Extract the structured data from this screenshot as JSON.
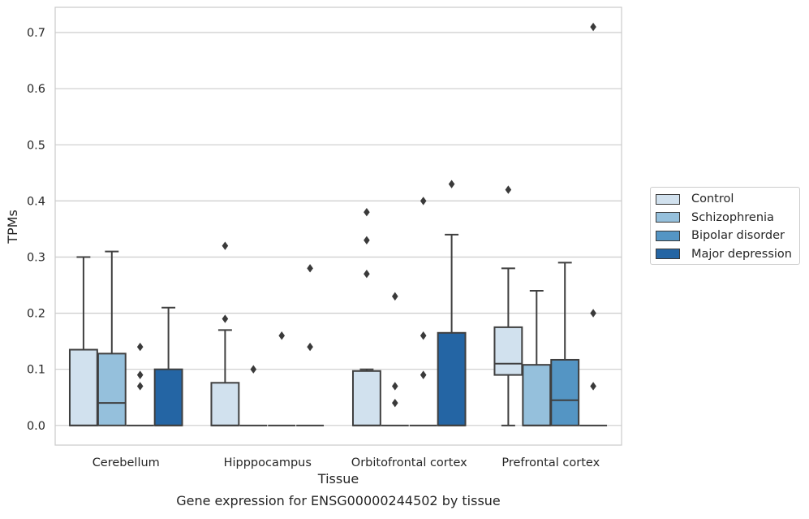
{
  "chart_data": {
    "type": "box",
    "title": "",
    "xlabel": "Tissue",
    "ylabel": "TPMs",
    "caption": "Gene expression for ENSG00000244502 by tissue",
    "ylim": [
      -0.035,
      0.745
    ],
    "yticks": [
      0.0,
      0.1,
      0.2,
      0.3,
      0.4,
      0.5,
      0.6,
      0.7
    ],
    "ytick_labels": [
      "0.0",
      "0.1",
      "0.2",
      "0.3",
      "0.4",
      "0.5",
      "0.6",
      "0.7"
    ],
    "grid": "horizontal",
    "legend_position": "right-center",
    "categories": [
      "Cerebellum",
      "Hipppocampus",
      "Orbitofrontal cortex",
      "Prefrontal cortex"
    ],
    "series": [
      {
        "name": "Control",
        "color": "#d1e1ee",
        "boxes": [
          {
            "min": 0.0,
            "q1": 0.0,
            "median": 0.0,
            "q3": 0.135,
            "max": 0.3,
            "outliers": []
          },
          {
            "min": 0.0,
            "q1": 0.0,
            "median": 0.0,
            "q3": 0.076,
            "max": 0.17,
            "outliers": [
              0.19,
              0.32
            ]
          },
          {
            "min": 0.0,
            "q1": 0.0,
            "median": 0.0,
            "q3": 0.097,
            "max": 0.1,
            "outliers": [
              0.27,
              0.33,
              0.38
            ]
          },
          {
            "min": 0.0,
            "q1": 0.09,
            "median": 0.11,
            "q3": 0.175,
            "max": 0.28,
            "outliers": [
              0.42
            ]
          }
        ]
      },
      {
        "name": "Schizophrenia",
        "color": "#95c0dc",
        "boxes": [
          {
            "min": 0.0,
            "q1": 0.0,
            "median": 0.04,
            "q3": 0.128,
            "max": 0.31,
            "outliers": []
          },
          {
            "min": 0.0,
            "q1": 0.0,
            "median": 0.0,
            "q3": 0.0,
            "max": 0.0,
            "outliers": [
              0.1
            ]
          },
          {
            "min": 0.0,
            "q1": 0.0,
            "median": 0.0,
            "q3": 0.0,
            "max": 0.0,
            "outliers": [
              0.04,
              0.07,
              0.23
            ]
          },
          {
            "min": 0.0,
            "q1": 0.0,
            "median": 0.0,
            "q3": 0.108,
            "max": 0.24,
            "outliers": []
          }
        ]
      },
      {
        "name": "Bipolar disorder",
        "color": "#5495c4",
        "boxes": [
          {
            "min": 0.0,
            "q1": 0.0,
            "median": 0.0,
            "q3": 0.0,
            "max": 0.0,
            "outliers": [
              0.07,
              0.09,
              0.14
            ]
          },
          {
            "min": 0.0,
            "q1": 0.0,
            "median": 0.0,
            "q3": 0.0,
            "max": 0.0,
            "outliers": [
              0.16
            ]
          },
          {
            "min": 0.0,
            "q1": 0.0,
            "median": 0.0,
            "q3": 0.0,
            "max": 0.0,
            "outliers": [
              0.09,
              0.16,
              0.4
            ]
          },
          {
            "min": 0.0,
            "q1": 0.0,
            "median": 0.045,
            "q3": 0.117,
            "max": 0.29,
            "outliers": []
          }
        ]
      },
      {
        "name": "Major depression",
        "color": "#2465a4",
        "boxes": [
          {
            "min": 0.0,
            "q1": 0.0,
            "median": 0.0,
            "q3": 0.1,
            "max": 0.21,
            "outliers": []
          },
          {
            "min": 0.0,
            "q1": 0.0,
            "median": 0.0,
            "q3": 0.0,
            "max": 0.0,
            "outliers": [
              0.14,
              0.28
            ]
          },
          {
            "min": 0.0,
            "q1": 0.0,
            "median": 0.0,
            "q3": 0.165,
            "max": 0.34,
            "outliers": [
              0.43
            ]
          },
          {
            "min": 0.0,
            "q1": 0.0,
            "median": 0.0,
            "q3": 0.0,
            "max": 0.0,
            "outliers": [
              0.07,
              0.2,
              0.71
            ]
          }
        ]
      }
    ]
  }
}
